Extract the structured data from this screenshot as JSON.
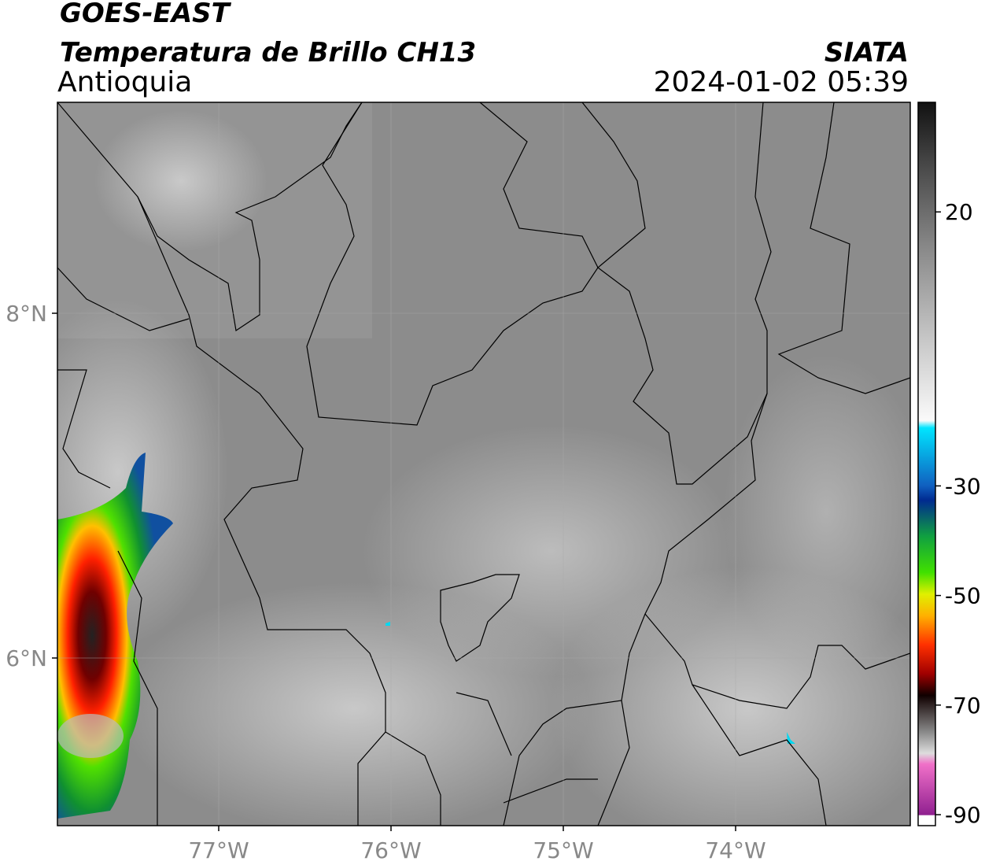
{
  "header": {
    "title": "GOES-EAST",
    "subtitle": "Temperatura de Brillo CH13",
    "region": "Antioquia",
    "source": "SIATA",
    "datetime": "2024-01-02 05:39"
  },
  "map": {
    "lat_labels": [
      "8°N",
      "6°N"
    ],
    "lon_labels": [
      "77°W",
      "76°W",
      "75°W",
      "74°W"
    ]
  },
  "colorbar": {
    "range": [
      -92,
      40
    ],
    "ticks": [
      20,
      -30,
      -50,
      -70,
      -90
    ]
  }
}
